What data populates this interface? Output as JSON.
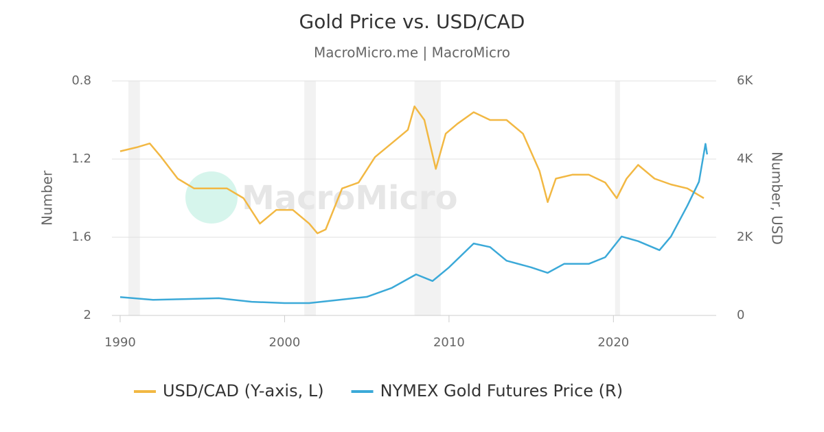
{
  "chart_data": {
    "type": "line",
    "title": "Gold Price vs. USD/CAD",
    "subtitle": "MacroMicro.me | MacroMicro",
    "watermark": "MacroMicro",
    "y_label": "Number",
    "y2_label": "Number, USD",
    "xlim": [
      1989.5,
      2026.25
    ],
    "xticks": [
      1990,
      2000,
      2010,
      2020
    ],
    "ylim": [
      2,
      0.8
    ],
    "yticks": [
      0.8,
      1.2,
      1.6,
      2
    ],
    "y2lim": [
      0,
      6000
    ],
    "y2ticks": [
      {
        "value": 6000,
        "label": "6K"
      },
      {
        "value": 4000,
        "label": "4K"
      },
      {
        "value": 2000,
        "label": "2K"
      },
      0
    ],
    "grid": true,
    "shaded_periods": [
      [
        1990.5,
        1991.2
      ],
      [
        2001.2,
        2001.9
      ],
      [
        2007.9,
        2009.5
      ],
      [
        2020.1,
        2020.4
      ]
    ],
    "shade_color": "#f2f2f2",
    "series": [
      {
        "name": "USD/CAD (Y-axis, L)",
        "color": "#f2b843",
        "x": [
          1990,
          1991,
          1991.8,
          1992.5,
          1993.5,
          1994.5,
          1995.5,
          1996.5,
          1997.5,
          1998.5,
          1999.5,
          2000.5,
          2001.5,
          2002,
          2002.5,
          2003.5,
          2004.5,
          2005.5,
          2006.5,
          2007.5,
          2007.9,
          2008.5,
          2009.2,
          2009.8,
          2010.5,
          2011.5,
          2012.5,
          2013.5,
          2014.5,
          2015.5,
          2016,
          2016.5,
          2017.5,
          2018.5,
          2019.5,
          2020.2,
          2020.8,
          2021.5,
          2022.5,
          2023.5,
          2024.5,
          2025.5
        ],
        "values": [
          1.16,
          1.14,
          1.12,
          1.19,
          1.3,
          1.35,
          1.35,
          1.35,
          1.4,
          1.53,
          1.46,
          1.46,
          1.53,
          1.58,
          1.56,
          1.35,
          1.32,
          1.19,
          1.12,
          1.05,
          0.93,
          1.0,
          1.25,
          1.07,
          1.02,
          0.96,
          1.0,
          1.0,
          1.07,
          1.26,
          1.42,
          1.3,
          1.28,
          1.28,
          1.32,
          1.4,
          1.3,
          1.23,
          1.3,
          1.33,
          1.35,
          1.4
        ]
      },
      {
        "name": "NYMEX Gold Futures Price (R)",
        "color": "#3ba9d8",
        "axis": "y2",
        "x": [
          1990,
          1992,
          1994,
          1996,
          1998,
          2000,
          2001.5,
          2003,
          2005,
          2006.5,
          2008,
          2009,
          2010,
          2011.5,
          2012.5,
          2013.5,
          2015,
          2016,
          2017,
          2018.5,
          2019.5,
          2020.5,
          2021.5,
          2022.8,
          2023.5,
          2024.5,
          2025.2,
          2025.6,
          2025.7
        ],
        "values": [
          470,
          400,
          420,
          440,
          350,
          315,
          315,
          385,
          475,
          700,
          1050,
          880,
          1230,
          1840,
          1750,
          1400,
          1230,
          1090,
          1320,
          1320,
          1490,
          2020,
          1900,
          1670,
          2020,
          2810,
          3420,
          4390,
          4120
        ]
      }
    ]
  }
}
